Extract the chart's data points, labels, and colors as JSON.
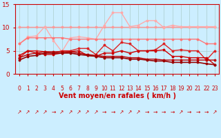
{
  "x": [
    0,
    1,
    2,
    3,
    4,
    5,
    6,
    7,
    8,
    9,
    10,
    11,
    12,
    13,
    14,
    15,
    16,
    17,
    18,
    19,
    20,
    21,
    22,
    23
  ],
  "series": [
    {
      "name": "light_pink_flat",
      "color": "#ff9999",
      "linewidth": 1.0,
      "marker": "o",
      "markersize": 1.8,
      "y": [
        10.2,
        10.2,
        10.2,
        10.2,
        10.2,
        10.2,
        10.2,
        10.2,
        10.2,
        10.2,
        10.2,
        10.2,
        10.2,
        10.2,
        10.2,
        10.2,
        10.2,
        10.2,
        10.2,
        10.2,
        10.2,
        10.2,
        10.2,
        10.2
      ]
    },
    {
      "name": "light_pink_wavy",
      "color": "#ffaaaa",
      "linewidth": 1.0,
      "marker": "o",
      "markersize": 1.8,
      "y": [
        6.5,
        8.0,
        8.2,
        10.2,
        7.2,
        4.8,
        7.8,
        8.0,
        7.8,
        7.5,
        10.5,
        13.2,
        13.2,
        10.2,
        10.5,
        11.5,
        11.5,
        10.0,
        10.5,
        10.2,
        10.2,
        10.2,
        10.2,
        10.2
      ]
    },
    {
      "name": "medium_pink_declining",
      "color": "#ff7777",
      "linewidth": 1.0,
      "marker": "o",
      "markersize": 1.8,
      "y": [
        6.5,
        7.8,
        7.8,
        7.8,
        7.8,
        7.8,
        7.5,
        7.5,
        7.5,
        7.5,
        7.5,
        7.5,
        7.5,
        7.5,
        7.5,
        7.5,
        7.5,
        7.5,
        7.5,
        7.5,
        7.5,
        7.5,
        6.5,
        6.5
      ]
    },
    {
      "name": "medium_red_wavy",
      "color": "#dd2222",
      "linewidth": 1.0,
      "marker": "o",
      "markersize": 1.8,
      "y": [
        3.5,
        5.0,
        5.0,
        4.8,
        4.5,
        5.0,
        5.0,
        5.5,
        5.5,
        4.2,
        6.2,
        5.0,
        6.8,
        6.5,
        5.0,
        5.0,
        5.2,
        6.5,
        5.0,
        5.2,
        5.0,
        5.0,
        3.0,
        5.0
      ]
    },
    {
      "name": "dark_red_wavy2",
      "color": "#cc0000",
      "linewidth": 1.0,
      "marker": "o",
      "markersize": 1.8,
      "y": [
        4.0,
        5.0,
        4.5,
        4.2,
        4.2,
        4.5,
        4.8,
        5.0,
        4.0,
        3.8,
        4.5,
        4.5,
        5.0,
        4.5,
        5.0,
        5.0,
        5.0,
        5.2,
        3.8,
        3.8,
        3.5,
        3.5,
        3.5,
        2.0
      ]
    },
    {
      "name": "dark_red_slow_decline",
      "color": "#bb0000",
      "linewidth": 1.0,
      "marker": "o",
      "markersize": 1.8,
      "y": [
        3.5,
        4.2,
        4.5,
        4.8,
        4.8,
        4.8,
        4.8,
        4.5,
        4.2,
        4.0,
        3.8,
        3.8,
        3.8,
        3.5,
        3.5,
        3.2,
        3.2,
        3.0,
        3.0,
        3.0,
        3.0,
        3.0,
        3.0,
        3.0
      ]
    },
    {
      "name": "dark_red_steep_decline",
      "color": "#990000",
      "linewidth": 1.2,
      "marker": "o",
      "markersize": 1.8,
      "y": [
        3.0,
        3.8,
        4.0,
        4.5,
        4.5,
        4.5,
        4.5,
        4.2,
        4.0,
        3.8,
        3.5,
        3.5,
        3.5,
        3.2,
        3.2,
        3.0,
        2.8,
        2.8,
        2.5,
        2.5,
        2.5,
        2.5,
        2.2,
        2.0
      ]
    }
  ],
  "arrows": [
    "↗",
    "↗",
    "↗",
    "↗",
    "→",
    "↗",
    "↗",
    "↗",
    "↗",
    "↗",
    "→",
    "→",
    "↗",
    "↗",
    "↗",
    "→",
    "→",
    "→",
    "→",
    "↗",
    "→",
    "→",
    "→",
    "↗"
  ],
  "xlabel": "Vent moyen/en rafales ( km/h )",
  "xlim": [
    -0.5,
    23.5
  ],
  "ylim": [
    0,
    15
  ],
  "yticks": [
    0,
    5,
    10,
    15
  ],
  "xticks": [
    0,
    1,
    2,
    3,
    4,
    5,
    6,
    7,
    8,
    9,
    10,
    11,
    12,
    13,
    14,
    15,
    16,
    17,
    18,
    19,
    20,
    21,
    22,
    23
  ],
  "bg_color": "#cceeff",
  "grid_color": "#aacccc",
  "xlabel_color": "#cc0000",
  "tick_color": "#cc0000",
  "xlabel_fontsize": 7,
  "tick_fontsize": 5.5,
  "ytick_fontsize": 6.5,
  "arrow_color": "#cc0000",
  "arrow_fontsize": 5.5
}
